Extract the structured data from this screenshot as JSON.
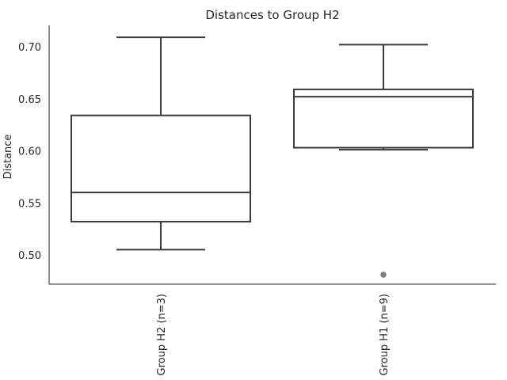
{
  "chart_data": {
    "type": "box",
    "title": "Distances to Group H2",
    "xlabel": "",
    "ylabel": "Distance",
    "ylim": [
      0.47,
      0.72
    ],
    "yticks": [
      "0.50",
      "0.55",
      "0.60",
      "0.65",
      "0.70"
    ],
    "grid": false,
    "categories": [
      "Group H2 (n=3)",
      "Group H1 (n=9)"
    ],
    "boxes": [
      {
        "whisker_low": 0.505,
        "q1": 0.532,
        "median": 0.56,
        "q3": 0.634,
        "whisker_high": 0.709,
        "outliers": []
      },
      {
        "whisker_low": 0.601,
        "q1": 0.603,
        "median": 0.652,
        "q3": 0.659,
        "whisker_high": 0.702,
        "outliers": [
          0.481
        ]
      }
    ],
    "colors": {
      "line": "#3a3a3a",
      "outlier": "#808080",
      "axis": "#262626",
      "box_fill": "#ffffff"
    }
  }
}
